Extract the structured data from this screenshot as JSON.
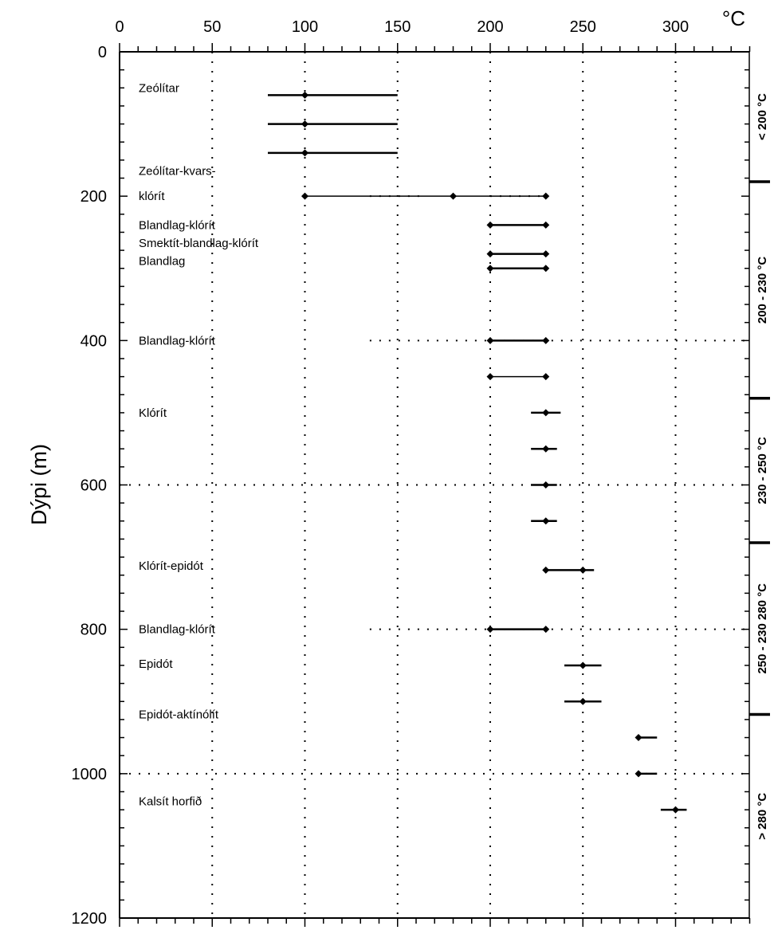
{
  "chart_data": {
    "type": "scatter",
    "title": "",
    "xlabel": "°C",
    "ylabel": "Dýpi (m)",
    "xlim": [
      0,
      340
    ],
    "ylim": [
      1200,
      0
    ],
    "x_ticks": [
      "0",
      "50",
      "100",
      "150",
      "200",
      "250",
      "300"
    ],
    "y_ticks": [
      "0",
      "200",
      "400",
      "600",
      "800",
      "1000",
      "1200"
    ],
    "grid": true,
    "minerals": [
      {
        "label": "Zeólítar",
        "label_depth": 50
      },
      {
        "label": "Zeólítar-kvars-",
        "label_depth": 165
      },
      {
        "label": "klórít",
        "label_depth": 200
      },
      {
        "label": "Blandlag-klórít",
        "label_depth": 240
      },
      {
        "label": "Smektít-blandlag-klórít",
        "label_depth": 265
      },
      {
        "label": "Blandlag",
        "label_depth": 290
      },
      {
        "label": "Blandlag-klórít",
        "label_depth": 400
      },
      {
        "label": "Klórít",
        "label_depth": 500
      },
      {
        "label": "Klórít-epidót",
        "label_depth": 712
      },
      {
        "label": "Blandlag-klórít",
        "label_depth": 800
      },
      {
        "label": "Epidót",
        "label_depth": 848
      },
      {
        "label": "Epidót-aktínólít",
        "label_depth": 918
      },
      {
        "label": "Kalsít horfið",
        "label_depth": 1038
      }
    ],
    "ranges": [
      {
        "depth": 60,
        "min": 80,
        "max": 150,
        "points": [
          100
        ]
      },
      {
        "depth": 100,
        "min": 80,
        "max": 150,
        "points": [
          100
        ]
      },
      {
        "depth": 140,
        "min": 80,
        "max": 150,
        "points": [
          100
        ]
      },
      {
        "depth": 200,
        "min": 100,
        "max": 230,
        "points": [
          100,
          180,
          230
        ]
      },
      {
        "depth": 240,
        "min": 200,
        "max": 230,
        "points": [
          200,
          230
        ]
      },
      {
        "depth": 280,
        "min": 200,
        "max": 230,
        "points": [
          200,
          230
        ]
      },
      {
        "depth": 300,
        "min": 200,
        "max": 230,
        "points": [
          200,
          230
        ]
      },
      {
        "depth": 400,
        "min": 200,
        "max": 230,
        "points": [
          200,
          230
        ]
      },
      {
        "depth": 450,
        "min": 200,
        "max": 230,
        "points": [
          200,
          230
        ]
      },
      {
        "depth": 500,
        "min": 222,
        "max": 238,
        "points": [
          230
        ]
      },
      {
        "depth": 550,
        "min": 222,
        "max": 236,
        "points": [
          230
        ]
      },
      {
        "depth": 600,
        "min": 222,
        "max": 236,
        "points": [
          230
        ]
      },
      {
        "depth": 650,
        "min": 222,
        "max": 236,
        "points": [
          230
        ]
      },
      {
        "depth": 718,
        "min": 230,
        "max": 256,
        "points": [
          230,
          250
        ]
      },
      {
        "depth": 800,
        "min": 200,
        "max": 230,
        "points": [
          200,
          230
        ]
      },
      {
        "depth": 850,
        "min": 240,
        "max": 260,
        "points": [
          250
        ]
      },
      {
        "depth": 900,
        "min": 240,
        "max": 260,
        "points": [
          250
        ]
      },
      {
        "depth": 950,
        "min": 280,
        "max": 290,
        "points": [
          280
        ]
      },
      {
        "depth": 1000,
        "min": 280,
        "max": 290,
        "points": [
          280
        ]
      },
      {
        "depth": 1050,
        "min": 292,
        "max": 306,
        "points": [
          300
        ]
      }
    ],
    "zones": [
      {
        "label": "< 200 °C",
        "top": 0,
        "bottom": 180
      },
      {
        "label": "200 - 230 °C",
        "top": 180,
        "bottom": 480
      },
      {
        "label": "230 - 250 °C",
        "top": 480,
        "bottom": 680
      },
      {
        "label": "250 - 230 280 °C",
        "top": 680,
        "bottom": 918
      },
      {
        "label": "> 280 °C",
        "top": 918,
        "bottom": 1200
      }
    ]
  }
}
